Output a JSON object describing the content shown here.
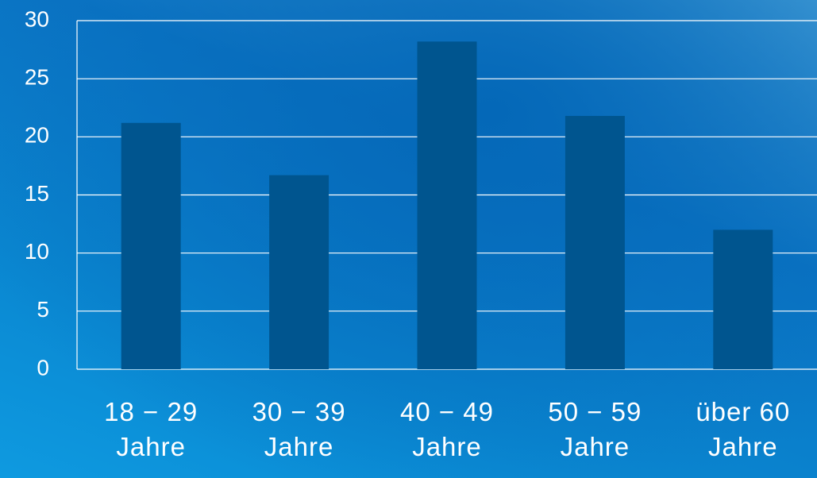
{
  "chart_data": {
    "type": "bar",
    "categories": [
      "18 − 29 Jahre",
      "30 − 39 Jahre",
      "40 − 49 Jahre",
      "50 − 59 Jahre",
      "über 60 Jahre"
    ],
    "values": [
      21.2,
      16.7,
      28.2,
      21.8,
      12.0
    ],
    "color": "#00558f",
    "ylim": [
      0,
      30
    ],
    "yticks": [
      0,
      5,
      10,
      15,
      20,
      25,
      30
    ],
    "grid": true
  }
}
